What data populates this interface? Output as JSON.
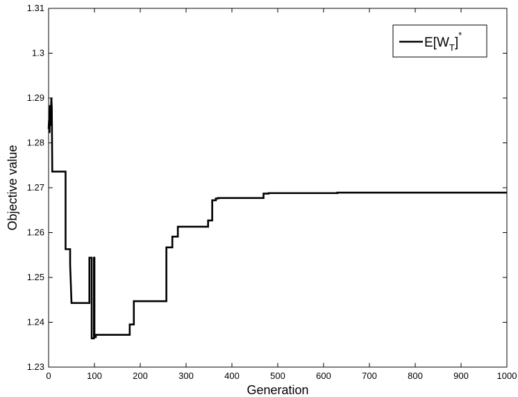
{
  "chart_data": {
    "type": "line",
    "title": "",
    "xlabel": "Generation",
    "ylabel": "Objective value",
    "xlim": [
      0,
      1000
    ],
    "ylim": [
      1.23,
      1.31
    ],
    "grid": false,
    "x_ticks": [
      "0",
      "100",
      "200",
      "300",
      "400",
      "500",
      "600",
      "700",
      "800",
      "900",
      "1000"
    ],
    "y_ticks": [
      "1.23",
      "1.24",
      "1.25",
      "1.26",
      "1.27",
      "1.28",
      "1.29",
      "1.3",
      "1.31"
    ],
    "legend": {
      "placement": "top-right",
      "entries": [
        {
          "base": "E[W",
          "sub": "T",
          "close": "]",
          "sup": "*"
        }
      ]
    },
    "series": [
      {
        "name": "E[W_T]*",
        "color": "#000000",
        "style": "step",
        "points": [
          [
            0,
            1.2831
          ],
          [
            1,
            1.2852
          ],
          [
            2,
            1.2822
          ],
          [
            3,
            1.2884
          ],
          [
            4,
            1.2838
          ],
          [
            6,
            1.2901
          ],
          [
            7,
            1.2877
          ],
          [
            8,
            1.2736
          ],
          [
            37,
            1.2736
          ],
          [
            37,
            1.2563
          ],
          [
            47,
            1.2563
          ],
          [
            47,
            1.2528
          ],
          [
            50,
            1.2443
          ],
          [
            89,
            1.2443
          ],
          [
            89,
            1.2544
          ],
          [
            94,
            1.2544
          ],
          [
            94,
            1.2364
          ],
          [
            99,
            1.2364
          ],
          [
            99,
            1.2544
          ],
          [
            100,
            1.2544
          ],
          [
            100,
            1.2367
          ],
          [
            103,
            1.2367
          ],
          [
            103,
            1.2372
          ],
          [
            177,
            1.2372
          ],
          [
            177,
            1.2395
          ],
          [
            186,
            1.2395
          ],
          [
            186,
            1.2447
          ],
          [
            257,
            1.2447
          ],
          [
            257,
            1.2567
          ],
          [
            270,
            1.2567
          ],
          [
            270,
            1.2591
          ],
          [
            282,
            1.2591
          ],
          [
            282,
            1.2613
          ],
          [
            348,
            1.2613
          ],
          [
            348,
            1.2627
          ],
          [
            357,
            1.2627
          ],
          [
            357,
            1.2672
          ],
          [
            365,
            1.2672
          ],
          [
            365,
            1.2676
          ],
          [
            370,
            1.2676
          ],
          [
            370,
            1.2677
          ],
          [
            469,
            1.2677
          ],
          [
            469,
            1.2687
          ],
          [
            480,
            1.2687
          ],
          [
            480,
            1.2688
          ],
          [
            630,
            1.2688
          ],
          [
            630,
            1.2689
          ],
          [
            1000,
            1.2689
          ]
        ]
      }
    ]
  }
}
